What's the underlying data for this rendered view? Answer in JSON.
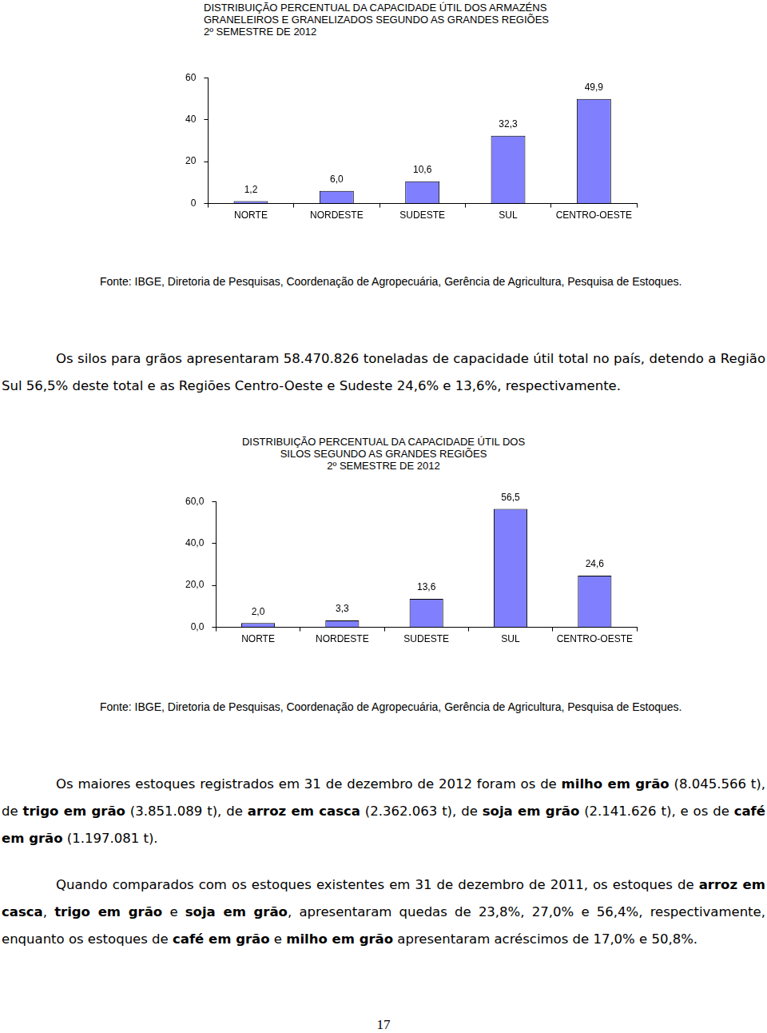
{
  "chart_data": [
    {
      "type": "bar",
      "title": "DISTRIBUIÇÃO PERCENTUAL DA CAPACIDADE ÚTIL DOS ARMAZÉNS\nGRANELEIROS E GRANELIZADOS SEGUNDO AS GRANDES REGIÕES\n2º SEMESTRE DE 2012",
      "categories": [
        "NORTE",
        "NORDESTE",
        "SUDESTE",
        "SUL",
        "CENTRO-OESTE"
      ],
      "values": [
        1.2,
        6.0,
        10.6,
        32.3,
        49.9
      ],
      "value_labels": [
        "1,2",
        "6,0",
        "10,6",
        "32,3",
        "49,9"
      ],
      "color": "#8080ff",
      "ylim": [
        0,
        60
      ],
      "yticks": [
        0,
        20,
        40,
        60
      ],
      "grid": false,
      "data_labels": true
    },
    {
      "type": "bar",
      "title": "DISTRIBUIÇÃO PERCENTUAL DA CAPACIDADE ÚTIL DOS\nSILOS SEGUNDO AS GRANDES REGIÕES\n2º SEMESTRE DE 2012",
      "categories": [
        "NORTE",
        "NORDESTE",
        "SUDESTE",
        "SUL",
        "CENTRO-OESTE"
      ],
      "values": [
        2.0,
        3.3,
        13.6,
        56.5,
        24.6
      ],
      "value_labels": [
        "2,0",
        "3,3",
        "13,6",
        "56,5",
        "24,6"
      ],
      "color": "#8080ff",
      "ylim": [
        0,
        60
      ],
      "yticks": [
        {
          "value": 0,
          "label": "0,0"
        },
        {
          "value": 20,
          "label": "20,0"
        },
        {
          "value": 40,
          "label": "40,0"
        },
        {
          "value": 60,
          "label": "60,0"
        }
      ],
      "grid": false,
      "data_labels": true
    }
  ],
  "document": {
    "sources": [
      "Fonte: IBGE, Diretoria de Pesquisas, Coordenação de Agropecuária, Gerência de Agricultura, Pesquisa de Estoques.",
      "Fonte: IBGE, Diretoria de Pesquisas, Coordenação de Agropecuária, Gerência de Agricultura, Pesquisa de Estoques."
    ],
    "paragraphs": [
      [
        {
          "text": "Os silos para grãos apresentaram 58.470.826 toneladas de capacidade útil total no país, detendo a Região Sul 56,5% deste total e as Regiões Centro-Oeste e Sudeste 24,6% e 13,6%, respectivamente.",
          "bold": false
        }
      ],
      [
        {
          "text": "Os maiores estoques registrados em 31 de dezembro de 2012 foram os de ",
          "bold": false
        },
        {
          "text": "milho em grão",
          "bold": true
        },
        {
          "text": " (8.045.566 t), de ",
          "bold": false
        },
        {
          "text": "trigo em grão",
          "bold": true
        },
        {
          "text": " (3.851.089 t), de ",
          "bold": false
        },
        {
          "text": "arroz em casca",
          "bold": true
        },
        {
          "text": " (2.362.063 t), de ",
          "bold": false
        },
        {
          "text": "soja em grão",
          "bold": true
        },
        {
          "text": " (2.141.626 t), e os de ",
          "bold": false
        },
        {
          "text": "café em grão",
          "bold": true
        },
        {
          "text": " (1.197.081 t).",
          "bold": false
        }
      ],
      [
        {
          "text": "Quando comparados com os estoques existentes em 31 de dezembro de 2011, os estoques de ",
          "bold": false
        },
        {
          "text": "arroz em casca",
          "bold": true
        },
        {
          "text": ", ",
          "bold": false
        },
        {
          "text": "trigo em grão",
          "bold": true
        },
        {
          "text": " e ",
          "bold": false
        },
        {
          "text": "soja em grão",
          "bold": true
        },
        {
          "text": ", apresentaram quedas de 23,8%, 27,0% e 56,4%, respectivamente, enquanto os estoques de ",
          "bold": false
        },
        {
          "text": "café em grão",
          "bold": true
        },
        {
          "text": " e ",
          "bold": false
        },
        {
          "text": "milho em grão",
          "bold": true
        },
        {
          "text": " apresentaram acréscimos de 17,0% e 50,8%.",
          "bold": false
        }
      ]
    ],
    "page_number": "17"
  }
}
